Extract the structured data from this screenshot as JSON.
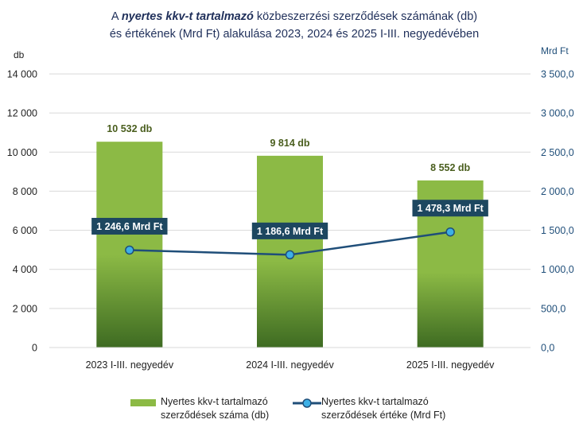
{
  "chart_data": {
    "type": "bar+line",
    "title": {
      "line1_pre": "A ",
      "line1_em": "nyertes kkv-t tartalmazó",
      "line1_post": " közbeszerzési szerződések számának (db)",
      "line2": "és értékének (Mrd Ft) alakulása 2023, 2024 és 2025  I-III. negyedévében"
    },
    "categories": [
      "2023 I-III. negyedév",
      "2024 I-III. negyedév",
      "2025 I-III. negyedév"
    ],
    "y_left": {
      "unit": "db",
      "lim": [
        0,
        14000
      ],
      "ticks": [
        0,
        2000,
        4000,
        6000,
        8000,
        10000,
        12000,
        14000
      ],
      "tick_labels": [
        "0",
        "2 000",
        "4 000",
        "6 000",
        "8 000",
        "10 000",
        "12 000",
        "14 000"
      ]
    },
    "y_right": {
      "unit": "Mrd Ft",
      "lim": [
        0,
        3500
      ],
      "ticks": [
        0,
        500,
        1000,
        1500,
        2000,
        2500,
        3000,
        3500
      ],
      "tick_labels": [
        "0,0",
        "500,0",
        "1 000,0",
        "1 500,0",
        "2 000,0",
        "2 500,0",
        "3 000,0",
        "3 500,0"
      ]
    },
    "series": [
      {
        "name": "Nyertes kkv-t tartalmazó szerződések száma (db)",
        "legend_lines": [
          "Nyertes kkv-t tartalmazó",
          "szerződések száma (db)"
        ],
        "kind": "bar",
        "axis": "left",
        "values": [
          10532,
          9814,
          8552
        ],
        "labels": [
          "10 532 db",
          "9 814 db",
          "8 552 db"
        ],
        "color": "#8cba45",
        "color_dark": "#3e6b22"
      },
      {
        "name": "Nyertes kkv-t tartalmazó szerződések értéke (Mrd Ft)",
        "legend_lines": [
          "Nyertes kkv-t tartalmazó",
          "szerződések értéke (Mrd Ft)"
        ],
        "kind": "line",
        "axis": "right",
        "values": [
          1246.6,
          1186.6,
          1478.3
        ],
        "labels": [
          "1 246,6 Mrd Ft",
          "1 186,6 Mrd Ft",
          "1 478,3 Mrd Ft"
        ],
        "color": "#1f4e79",
        "marker_color": "#3db0e6",
        "label_bg": "#1d4760"
      }
    ],
    "grid": true,
    "legend_position": "bottom"
  }
}
